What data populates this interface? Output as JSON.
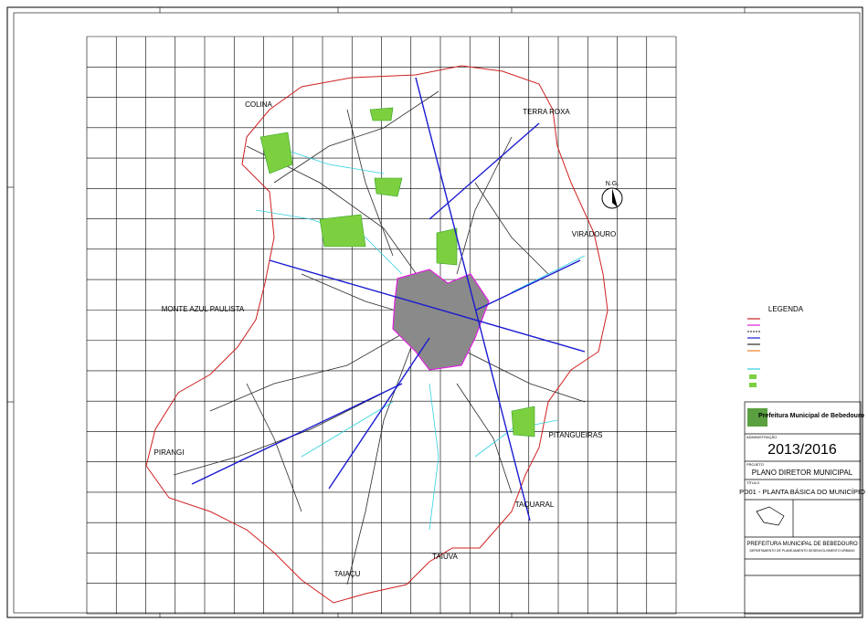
{
  "map": {
    "neighbors": [
      "COLINA",
      "TERRA ROXA",
      "VIRADOURO",
      "MONTE AZUL PAULISTA",
      "PIRANGI",
      "PITANGUEIRAS",
      "TAQUARAL",
      "TAIÚVA",
      "TAIAÇU"
    ],
    "north": "N.G.",
    "legend_title": "LEGENDA"
  },
  "title_block": {
    "institution": "Prefeitura Municipal de Bebedouro",
    "admin_label": "ADMINISTRAÇÃO",
    "admin": "2013/2016",
    "project_label": "PROJETO",
    "project": "PLANO DIRETOR MUNICIPAL",
    "title_label": "TÍTULO",
    "title": "PD01 - PLANTA BÁSICA DO MUNICÍPIO",
    "office": "PREFEITURA MUNICIPAL DE BEBEDOURO",
    "department": "DEPARTAMENTO DE PLANEJAMENTO DESENVOLVIMENTO URBANO"
  }
}
